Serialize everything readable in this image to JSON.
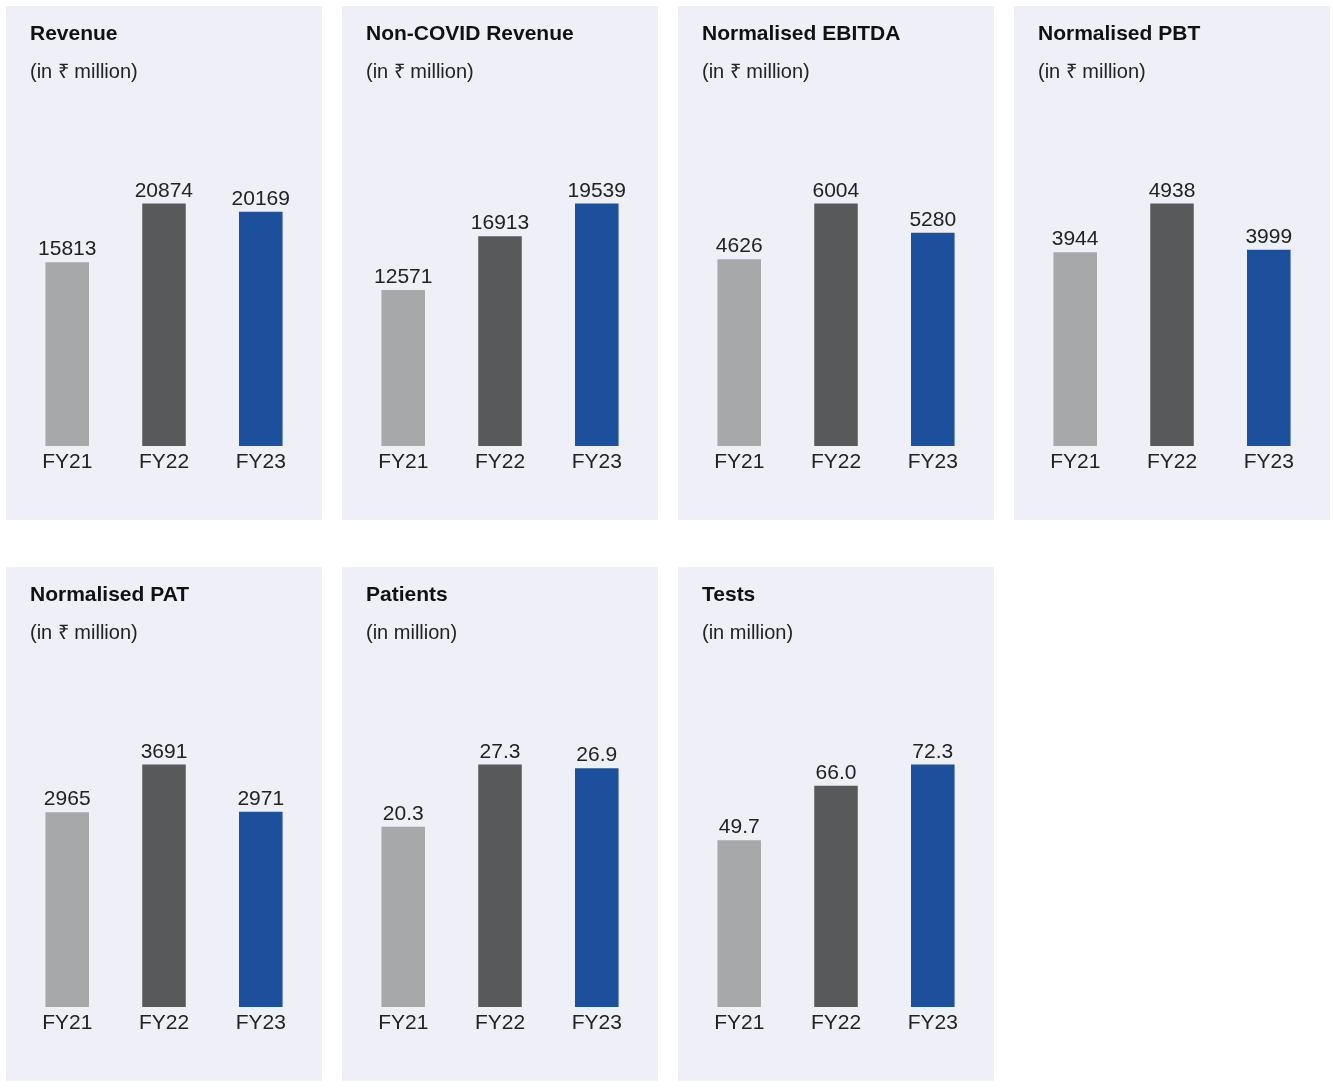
{
  "chart_data": [
    {
      "type": "bar",
      "title": "Revenue",
      "subtitle": "(in ₹ million)",
      "categories": [
        "FY21",
        "FY22",
        "FY23"
      ],
      "values": [
        15813,
        20874,
        20169
      ],
      "colors": [
        "#a7a8aa",
        "#58595b",
        "#1c4f9c"
      ],
      "data_labels": true
    },
    {
      "type": "bar",
      "title": "Non-COVID Revenue",
      "subtitle": "(in ₹ million)",
      "categories": [
        "FY21",
        "FY22",
        "FY23"
      ],
      "values": [
        12571,
        16913,
        19539
      ],
      "colors": [
        "#a7a8aa",
        "#58595b",
        "#1c4f9c"
      ],
      "data_labels": true
    },
    {
      "type": "bar",
      "title": "Normalised EBITDA",
      "subtitle": "(in ₹ million)",
      "categories": [
        "FY21",
        "FY22",
        "FY23"
      ],
      "values": [
        4626,
        6004,
        5280
      ],
      "colors": [
        "#a7a8aa",
        "#58595b",
        "#1c4f9c"
      ],
      "data_labels": true
    },
    {
      "type": "bar",
      "title": "Normalised PBT",
      "subtitle": "(in ₹ million)",
      "categories": [
        "FY21",
        "FY22",
        "FY23"
      ],
      "values": [
        3944,
        4938,
        3999
      ],
      "colors": [
        "#a7a8aa",
        "#58595b",
        "#1c4f9c"
      ],
      "data_labels": true
    },
    {
      "type": "bar",
      "title": "Normalised PAT",
      "subtitle": "(in ₹ million)",
      "categories": [
        "FY21",
        "FY22",
        "FY23"
      ],
      "values": [
        2965,
        3691,
        2971
      ],
      "colors": [
        "#a7a8aa",
        "#58595b",
        "#1c4f9c"
      ],
      "data_labels": true
    },
    {
      "type": "bar",
      "title": "Patients",
      "subtitle": "(in million)",
      "categories": [
        "FY21",
        "FY22",
        "FY23"
      ],
      "values": [
        20.3,
        27.3,
        26.9
      ],
      "colors": [
        "#a7a8aa",
        "#58595b",
        "#1c4f9c"
      ],
      "data_labels": true
    },
    {
      "type": "bar",
      "title": "Tests",
      "subtitle": "(in million)",
      "categories": [
        "FY21",
        "FY22",
        "FY23"
      ],
      "values": [
        49.7,
        66.0,
        72.3
      ],
      "value_labels": [
        "49.7",
        "66.0",
        "72.3"
      ],
      "colors": [
        "#a7a8aa",
        "#58595b",
        "#1c4f9c"
      ]
    }
  ]
}
